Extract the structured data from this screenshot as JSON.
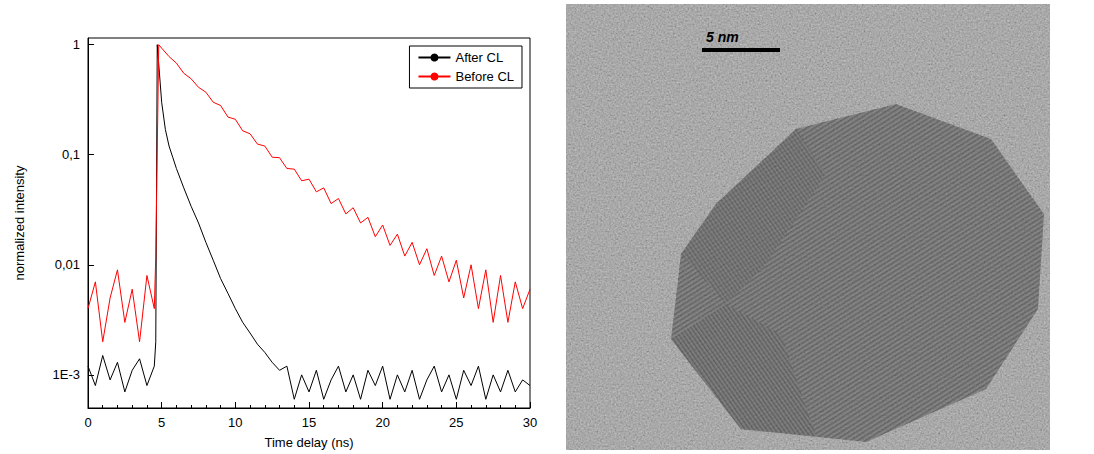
{
  "chart_data": {
    "type": "line",
    "xlabel": "Time delay (ns)",
    "ylabel": "normalized intensity",
    "log": "y",
    "grid": false,
    "legend": "upper right",
    "xlim": [
      0,
      30
    ],
    "xticks": [
      0,
      5,
      10,
      15,
      20,
      25,
      30
    ],
    "ylim": [
      0.0005,
      1.15
    ],
    "yticks": [
      {
        "value": 0.001,
        "label": "1E-3"
      },
      {
        "value": 0.01,
        "label": "0,01"
      },
      {
        "value": 0.1,
        "label": "0,1"
      },
      1
    ],
    "series": [
      {
        "name": "After CL",
        "color": "#000000",
        "x": [
          0,
          0.5,
          1,
          1.5,
          2,
          2.5,
          3,
          3.5,
          4,
          4.5,
          4.6,
          4.7,
          5,
          5.25,
          5.5,
          5.75,
          6,
          6.5,
          7,
          7.5,
          8,
          8.5,
          9,
          9.5,
          10,
          10.5,
          11,
          11.5,
          12,
          12.5,
          13,
          13.5,
          14,
          14.5,
          15,
          15.5,
          16,
          16.5,
          17,
          17.5,
          18,
          18.5,
          19,
          19.5,
          20,
          20.5,
          21,
          21.5,
          22,
          22.5,
          23,
          23.5,
          24,
          24.5,
          25,
          25.5,
          26,
          26.5,
          27,
          27.5,
          28,
          28.5,
          29,
          29.5,
          30
        ],
        "values": [
          0.0012,
          0.0008,
          0.0015,
          0.0009,
          0.0013,
          0.0007,
          0.0011,
          0.0014,
          0.0008,
          0.0012,
          0.002,
          1,
          0.3,
          0.17,
          0.12,
          0.095,
          0.075,
          0.05,
          0.034,
          0.024,
          0.016,
          0.011,
          0.0075,
          0.0055,
          0.004,
          0.003,
          0.0024,
          0.0019,
          0.0016,
          0.0013,
          0.0011,
          0.0012,
          0.0006,
          0.001,
          0.0007,
          0.0011,
          0.0006,
          0.0009,
          0.0012,
          0.0007,
          0.001,
          0.0006,
          0.0011,
          0.0008,
          0.0012,
          0.0006,
          0.001,
          0.0007,
          0.0011,
          0.0006,
          0.0009,
          0.0012,
          0.0007,
          0.001,
          0.0006,
          0.0011,
          0.0008,
          0.0012,
          0.0006,
          0.001,
          0.0007,
          0.0011,
          0.0007,
          0.0009,
          0.0008
        ]
      },
      {
        "name": "Before CL",
        "color": "#ff0000",
        "x": [
          0,
          0.5,
          1,
          1.5,
          2,
          2.5,
          3,
          3.5,
          4,
          4.5,
          4.6,
          4.8,
          5,
          5.5,
          6,
          6.5,
          7,
          7.5,
          8,
          8.5,
          9,
          9.5,
          10,
          10.5,
          11,
          11.5,
          12,
          12.5,
          13,
          13.5,
          14,
          14.5,
          15,
          15.5,
          16,
          16.5,
          17,
          17.5,
          18,
          18.5,
          19,
          19.5,
          20,
          20.5,
          21,
          21.5,
          22,
          22.5,
          23,
          23.5,
          24,
          24.5,
          25,
          25.5,
          26,
          26.5,
          27,
          27.5,
          28,
          28.5,
          29,
          29.5,
          30
        ],
        "values": [
          0.004,
          0.007,
          0.002,
          0.005,
          0.009,
          0.003,
          0.006,
          0.002,
          0.008,
          0.004,
          0.012,
          1,
          0.93,
          0.78,
          0.68,
          0.55,
          0.49,
          0.41,
          0.37,
          0.3,
          0.28,
          0.22,
          0.21,
          0.165,
          0.155,
          0.125,
          0.12,
          0.095,
          0.094,
          0.075,
          0.074,
          0.058,
          0.06,
          0.046,
          0.05,
          0.036,
          0.04,
          0.029,
          0.033,
          0.024,
          0.027,
          0.018,
          0.023,
          0.015,
          0.019,
          0.012,
          0.016,
          0.01,
          0.014,
          0.008,
          0.012,
          0.007,
          0.011,
          0.005,
          0.01,
          0.004,
          0.009,
          0.003,
          0.008,
          0.003,
          0.007,
          0.004,
          0.006
        ]
      }
    ]
  },
  "image": {
    "scale_bar_label": "5 nm"
  }
}
